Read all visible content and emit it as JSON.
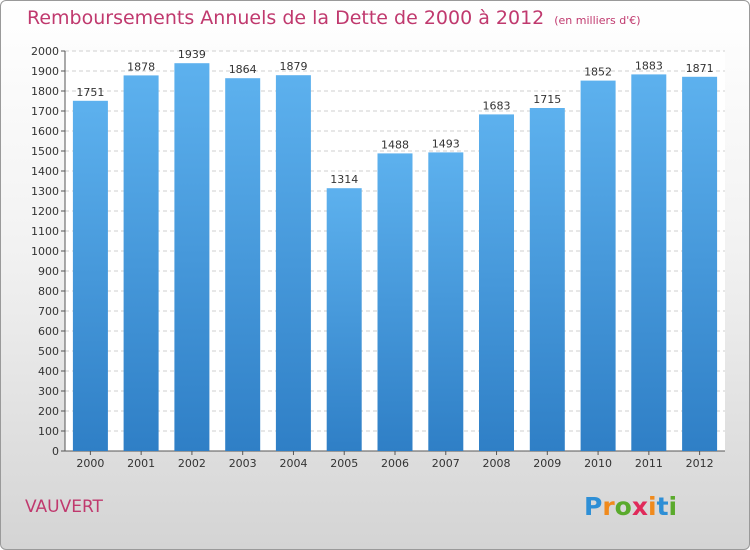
{
  "title": "Remboursements Annuels de la Dette de 2000 à 2012",
  "subtitle": "(en milliers d'€)",
  "commune": "VAUVERT",
  "logo": {
    "letters": [
      "P",
      "r",
      "o",
      "x",
      "i",
      "t",
      "i"
    ],
    "colors": [
      "#2e8fd6",
      "#f08a1c",
      "#5aaa2c",
      "#e02a5a",
      "#f08a1c",
      "#2e8fd6",
      "#5aaa2c"
    ]
  },
  "chart_data": {
    "type": "bar",
    "categories": [
      "2000",
      "2001",
      "2002",
      "2003",
      "2004",
      "2005",
      "2006",
      "2007",
      "2008",
      "2009",
      "2010",
      "2011",
      "2012"
    ],
    "values": [
      1751,
      1878,
      1939,
      1864,
      1879,
      1314,
      1488,
      1493,
      1683,
      1715,
      1852,
      1883,
      1871
    ],
    "ylim": [
      0,
      2000
    ],
    "ytick_step": 100,
    "grid": true,
    "bar_color": "#3d93dc",
    "bar_color_light": "#5db1ee"
  }
}
